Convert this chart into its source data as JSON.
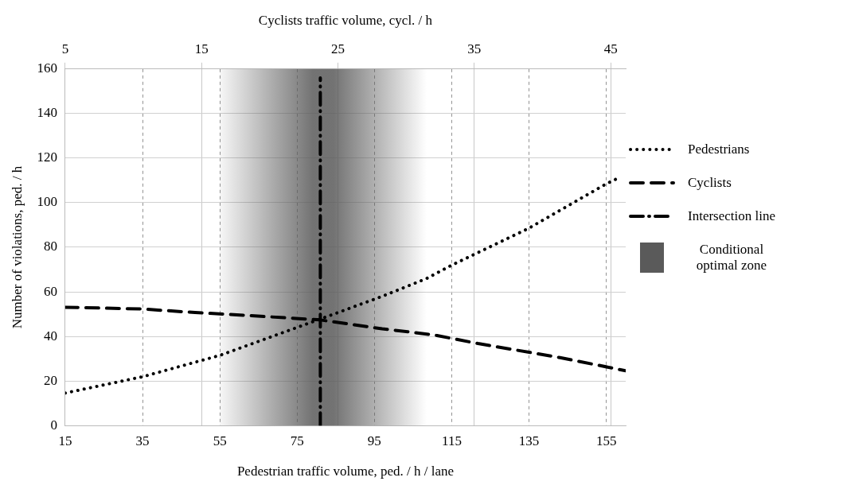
{
  "chart_data": {
    "type": "line",
    "xlabel": "Pedestrian traffic volume, ped. / h / lane",
    "x2label": "Cyclists traffic volume, cycl. / h",
    "ylabel": "Number of violations, ped. / h",
    "xlim": [
      15,
      160
    ],
    "xticks": [
      15,
      35,
      55,
      75,
      95,
      115,
      135,
      155
    ],
    "x2lim": [
      5,
      46.1
    ],
    "x2ticks": [
      5,
      15,
      25,
      35,
      45
    ],
    "ylim": [
      0,
      160
    ],
    "yticks": [
      0,
      20,
      40,
      60,
      80,
      100,
      120,
      140,
      160
    ],
    "grid": true,
    "legend": "right",
    "series": [
      {
        "name": "Pedestrians",
        "color": "#000000",
        "line_style": "dotted",
        "x": [
          15,
          35,
          55,
          81,
          97,
          108.5,
          115,
          135,
          155,
          158
        ],
        "values": [
          14.6,
          21.9,
          31.5,
          47.8,
          58,
          66,
          72,
          88.6,
          108.5,
          111
        ]
      },
      {
        "name": "Cyclists",
        "color": "#000000",
        "line_style": "dashed",
        "x": [
          15,
          35,
          48.6,
          59.4,
          81,
          97,
          103.6,
          111.2,
          121.8,
          143,
          160
        ],
        "values": [
          53.1,
          52.3,
          50.7,
          49.7,
          47.4,
          43.4,
          42.1,
          40.4,
          36.8,
          30.5,
          24.6
        ]
      },
      {
        "name": "Intersection line",
        "type": "line",
        "color": "#000000",
        "line_style": "dashdot",
        "x": [
          81,
          81
        ],
        "values": [
          0,
          156
        ]
      }
    ],
    "bands": [
      {
        "axis": "x",
        "from": 55,
        "to": 108.5,
        "color": "#5a5a5a"
      }
    ],
    "annotations": [
      "Conditional optimal zone"
    ]
  }
}
